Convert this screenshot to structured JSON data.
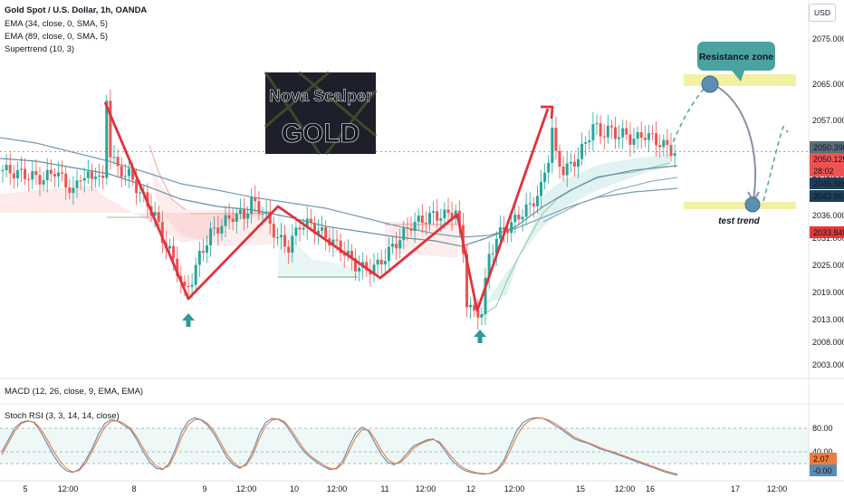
{
  "header": {
    "title": "Gold Spot / U.S. Dollar, 1h, OANDA",
    "indicators": [
      "EMA (34, close, 0, SMA, 5)",
      "EMA (89, close, 0, SMA, 5)",
      "Supertrend (10, 3)"
    ],
    "currency_button": "USD"
  },
  "logo": {
    "line1": "Nova Scalper",
    "line2": "GOLD"
  },
  "annotations": {
    "resistance_label": "Resistance zone",
    "test_label": "test trend"
  },
  "sub_panels": {
    "macd_label": "MACD (12, 26, close, 9, EMA, EMA)",
    "stoch_label": "Stoch RSI (3, 3, 14, 14, close)"
  },
  "colors": {
    "bull": "#26a69a",
    "bear": "#ef5350",
    "zigzag": "#e0323c",
    "ema34": "#6a8fa6",
    "ema89": "#7b9bb0",
    "resistance_zone": "#f3f0a2",
    "callout": "#4aa3a0",
    "stoch_k": "#5b8bb5",
    "stoch_d": "#f07a3c"
  },
  "chart_data": [
    {
      "type": "candlestick",
      "title": "Gold Spot / U.S. Dollar, 1h, OANDA",
      "xlabel": "",
      "ylabel": "",
      "x_tick_labels": [
        "5",
        "12:00",
        "8",
        "9",
        "12:00",
        "10",
        "12:00",
        "11",
        "12:00",
        "12",
        "12:00",
        "15",
        "12:00",
        "16",
        "17",
        "12:00"
      ],
      "y_tick_labels": [
        "2075.000",
        "2065.000",
        "2057.000",
        "2050.000",
        "2045.000",
        "2036.000",
        "2031.000",
        "2025.000",
        "2019.000",
        "2013.000",
        "2008.000",
        "2003.000"
      ],
      "ylim": [
        2000,
        2082
      ],
      "price_labels": [
        {
          "text": "2050.398",
          "color": "#5b6b7a"
        },
        {
          "text": "2050.125",
          "color": "#ef5350"
        },
        {
          "text": "28:02",
          "color": "#ef5350"
        },
        {
          "text": "2045.880",
          "color": "#1f3f5a"
        },
        {
          "text": "2043.991",
          "color": "#1f3f5a"
        },
        {
          "text": "2033.845",
          "color": "#e53935"
        }
      ],
      "price_path": [
        [
          0,
          2046
        ],
        [
          6,
          2045
        ],
        [
          11,
          2044
        ],
        [
          14,
          2046
        ],
        [
          17,
          2043
        ],
        [
          19,
          2041
        ],
        [
          21,
          2045
        ],
        [
          24,
          2044
        ],
        [
          25,
          2046
        ],
        [
          27,
          2043
        ],
        [
          28,
          2062
        ],
        [
          29,
          2050
        ],
        [
          31,
          2046
        ],
        [
          34,
          2045
        ],
        [
          37,
          2041
        ],
        [
          41,
          2036
        ],
        [
          43,
          2031
        ],
        [
          45,
          2028
        ],
        [
          47,
          2024
        ],
        [
          49,
          2019
        ],
        [
          51,
          2022
        ],
        [
          53,
          2027
        ],
        [
          56,
          2032
        ],
        [
          59,
          2034
        ],
        [
          62,
          2036
        ],
        [
          65,
          2036
        ],
        [
          67,
          2039
        ],
        [
          70,
          2037
        ],
        [
          72,
          2034
        ],
        [
          74,
          2031
        ],
        [
          77,
          2029
        ],
        [
          80,
          2034
        ],
        [
          83,
          2034
        ],
        [
          86,
          2032
        ],
        [
          89,
          2030
        ],
        [
          92,
          2028
        ],
        [
          95,
          2025
        ],
        [
          98,
          2024
        ],
        [
          101,
          2025
        ],
        [
          104,
          2028
        ],
        [
          107,
          2031
        ],
        [
          110,
          2034
        ],
        [
          113,
          2035
        ],
        [
          116,
          2036
        ],
        [
          119,
          2036
        ],
        [
          122,
          2037
        ],
        [
          124,
          2028
        ],
        [
          125,
          2017
        ],
        [
          127,
          2014
        ],
        [
          129,
          2015
        ],
        [
          131,
          2027
        ],
        [
          133,
          2031
        ],
        [
          135,
          2033
        ],
        [
          137,
          2034
        ],
        [
          139,
          2036
        ],
        [
          142,
          2038
        ],
        [
          145,
          2042
        ],
        [
          147,
          2049
        ],
        [
          148,
          2055
        ],
        [
          149,
          2049
        ],
        [
          151,
          2046
        ],
        [
          153,
          2047
        ],
        [
          155,
          2049
        ],
        [
          157,
          2052
        ],
        [
          159,
          2056
        ],
        [
          161,
          2054
        ],
        [
          163,
          2055
        ],
        [
          165,
          2054
        ],
        [
          167,
          2054
        ],
        [
          169,
          2053
        ],
        [
          171,
          2053
        ],
        [
          173,
          2054
        ],
        [
          175,
          2053
        ],
        [
          177,
          2052
        ],
        [
          179,
          2051
        ],
        [
          181,
          2050
        ]
      ]
    },
    {
      "type": "line",
      "title": "Stoch RSI (3, 3, 14, 14, close)",
      "y_tick_labels": [
        "80.00",
        "40.00"
      ],
      "ylim": [
        0,
        100
      ],
      "value_labels": [
        {
          "text": "2.07",
          "color": "#f07a3c"
        },
        {
          "text": "-0.00",
          "color": "#5b8bb5"
        }
      ],
      "series": [
        {
          "values": [
            40,
            60,
            80,
            90,
            93,
            90,
            75,
            55,
            35,
            18,
            8,
            5,
            10,
            25,
            45,
            70,
            88,
            95,
            92,
            85,
            78,
            60,
            40,
            22,
            12,
            10,
            20,
            45,
            75,
            92,
            98,
            94,
            85,
            70,
            50,
            30,
            18,
            12,
            20,
            40,
            70,
            90,
            97,
            95,
            88,
            72,
            55,
            40,
            30,
            22,
            15,
            10,
            12,
            25,
            50,
            72,
            82,
            75,
            55,
            35,
            22,
            18,
            25,
            38,
            50,
            55,
            60,
            62,
            55,
            40,
            25,
            15,
            8,
            5,
            3,
            2,
            4,
            10,
            25,
            50,
            75,
            90,
            96,
            98,
            97,
            92,
            85,
            78,
            70,
            62,
            58,
            55,
            50,
            45,
            42,
            38,
            34,
            30,
            26,
            22,
            18,
            14,
            10,
            6,
            3,
            0
          ]
        },
        {
          "values": [
            35,
            55,
            75,
            88,
            92,
            91,
            80,
            62,
            42,
            25,
            12,
            6,
            8,
            20,
            40,
            62,
            82,
            92,
            93,
            88,
            80,
            65,
            46,
            28,
            16,
            11,
            16,
            38,
            66,
            86,
            95,
            95,
            88,
            75,
            56,
            36,
            22,
            14,
            17,
            34,
            62,
            84,
            94,
            96,
            91,
            77,
            60,
            44,
            33,
            25,
            18,
            12,
            11,
            20,
            42,
            64,
            78,
            77,
            62,
            42,
            27,
            20,
            22,
            33,
            46,
            53,
            58,
            61,
            57,
            45,
            30,
            19,
            11,
            7,
            4,
            3,
            3,
            8,
            20,
            42,
            66,
            84,
            93,
            97,
            97,
            94,
            88,
            81,
            73,
            65,
            60,
            56,
            52,
            47,
            43,
            40,
            36,
            32,
            28,
            24,
            20,
            16,
            12,
            8,
            5,
            2.07
          ]
        }
      ]
    }
  ]
}
